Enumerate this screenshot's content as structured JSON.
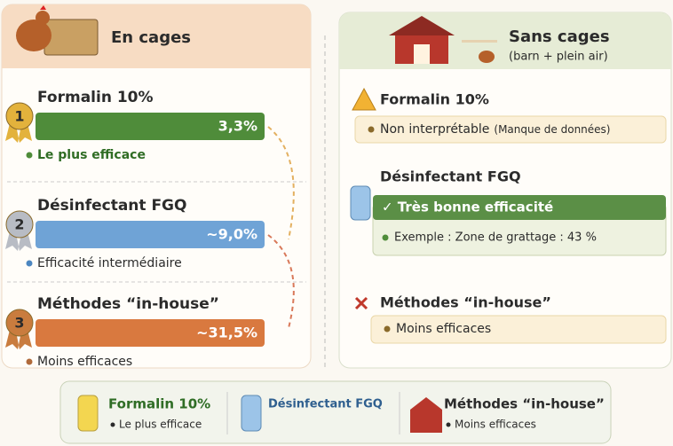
{
  "left": {
    "title": "En cages",
    "items": [
      {
        "rank": "1",
        "title": "Formalin 10%",
        "value": "3,3%",
        "note": "Le plus efficace"
      },
      {
        "rank": "2",
        "title": "Désinfectant FGQ",
        "value": "~9,0%",
        "note": "Efficacité intermédiaire"
      },
      {
        "rank": "3",
        "title": "Méthodes “in-house”",
        "value": "~31,5%",
        "note": "Moins efficaces"
      }
    ]
  },
  "right": {
    "title": "Sans cages",
    "subtitle": "(barn + plein air)",
    "items": [
      {
        "title": "Formalin 10%",
        "result": "Non interprétable",
        "detail": "(Manque de données)"
      },
      {
        "title": "Désinfectant FGQ",
        "result": "✓ Très bonne efficacité",
        "detail": "Exemple : Zone de grattage : 43 %"
      },
      {
        "title": "Méthodes “in-house”",
        "result": "Moins efficaces"
      }
    ]
  },
  "legend": [
    {
      "title": "Formalin 10%",
      "note": "Le plus efficace"
    },
    {
      "title": "Désinfectant FGQ"
    },
    {
      "title": "Méthodes “in-house”",
      "note": "Moins efficaces"
    }
  ]
}
